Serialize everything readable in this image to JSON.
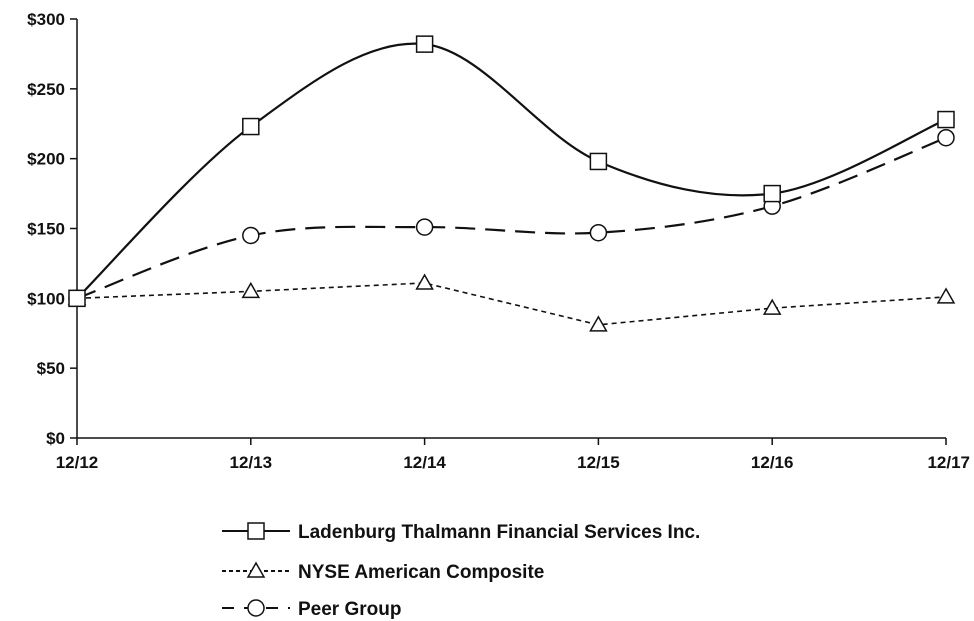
{
  "chart_data": {
    "type": "line",
    "categories": [
      "12/12",
      "12/13",
      "12/14",
      "12/15",
      "12/16",
      "12/17"
    ],
    "ylim": [
      0,
      300
    ],
    "yticks": [
      0,
      50,
      100,
      150,
      200,
      250,
      300
    ],
    "ytick_labels": [
      "$0",
      "$50",
      "$100",
      "$150",
      "$200",
      "$250",
      "$300"
    ],
    "grid": false,
    "legend_position": "bottom",
    "series": [
      {
        "name": "Ladenburg Thalmann Financial Services Inc.",
        "marker": "square",
        "line_style": "solid",
        "values": [
          100,
          223,
          282,
          198,
          175,
          228
        ]
      },
      {
        "name": "NYSE American Composite",
        "marker": "triangle",
        "line_style": "dotted",
        "values": [
          100,
          105,
          111,
          81,
          93,
          101
        ]
      },
      {
        "name": "Peer Group",
        "marker": "circle",
        "line_style": "dashed",
        "values": [
          100,
          145,
          151,
          147,
          166,
          215
        ]
      }
    ]
  }
}
